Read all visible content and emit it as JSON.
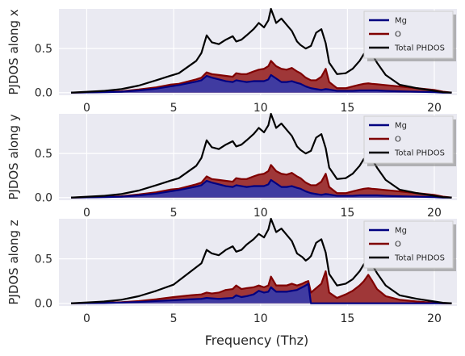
{
  "figure": {
    "xlabel": "Frequency (Thz)"
  },
  "colors": {
    "background": "#EAEAF2",
    "grid": "#FFFFFF",
    "mg": "#000080",
    "mg_fill": "#3B3BA6",
    "o": "#800000",
    "o_fill": "#9B2D2D",
    "total": "#000000"
  },
  "legend_labels": [
    "Mg",
    "O",
    "Total PHDOS"
  ],
  "chart_data": [
    {
      "type": "area",
      "ylabel": "PJDOS along x",
      "xlim": [
        -1.6,
        21.3
      ],
      "ylim": [
        -0.03,
        0.95
      ],
      "xticks": [
        0,
        5,
        10,
        15,
        20
      ],
      "yticks": [
        0.0,
        0.5
      ],
      "grid": true,
      "legend": "top-right",
      "x": [
        -0.9,
        1,
        2,
        3,
        4,
        4.8,
        5.3,
        6.3,
        6.6,
        6.9,
        7.2,
        7.6,
        8.0,
        8.4,
        8.6,
        8.9,
        9.2,
        9.6,
        9.9,
        10.2,
        10.45,
        10.6,
        10.9,
        11.2,
        11.5,
        11.8,
        12.1,
        12.3,
        12.6,
        12.9,
        13.2,
        13.5,
        13.75,
        13.95,
        14.4,
        14.9,
        15.3,
        15.7,
        15.95,
        16.2,
        16.4,
        16.7,
        17.2,
        18.0,
        19.0,
        20.0,
        20.5,
        21.0
      ],
      "series": [
        {
          "name": "Mg",
          "values": [
            0.0,
            0.005,
            0.01,
            0.025,
            0.045,
            0.07,
            0.085,
            0.125,
            0.14,
            0.19,
            0.17,
            0.15,
            0.13,
            0.12,
            0.14,
            0.13,
            0.12,
            0.13,
            0.13,
            0.13,
            0.15,
            0.2,
            0.16,
            0.12,
            0.12,
            0.13,
            0.11,
            0.1,
            0.07,
            0.05,
            0.04,
            0.03,
            0.04,
            0.035,
            0.02,
            0.02,
            0.02,
            0.025,
            0.025,
            0.025,
            0.025,
            0.025,
            0.02,
            0.015,
            0.01,
            0.005,
            0.0,
            0.0
          ]
        },
        {
          "name": "O",
          "values": [
            0.0,
            0.008,
            0.015,
            0.035,
            0.06,
            0.09,
            0.1,
            0.15,
            0.17,
            0.23,
            0.21,
            0.2,
            0.19,
            0.18,
            0.22,
            0.21,
            0.21,
            0.24,
            0.26,
            0.27,
            0.3,
            0.36,
            0.3,
            0.27,
            0.26,
            0.28,
            0.24,
            0.22,
            0.17,
            0.14,
            0.14,
            0.18,
            0.27,
            0.12,
            0.05,
            0.05,
            0.07,
            0.09,
            0.1,
            0.105,
            0.1,
            0.095,
            0.085,
            0.07,
            0.05,
            0.03,
            0.01,
            0.0
          ]
        },
        {
          "name": "Total PHDOS",
          "values": [
            0.0,
            0.02,
            0.04,
            0.08,
            0.14,
            0.19,
            0.22,
            0.36,
            0.45,
            0.65,
            0.57,
            0.55,
            0.6,
            0.64,
            0.58,
            0.6,
            0.65,
            0.72,
            0.79,
            0.74,
            0.82,
            0.95,
            0.79,
            0.84,
            0.77,
            0.7,
            0.58,
            0.54,
            0.5,
            0.53,
            0.68,
            0.72,
            0.56,
            0.34,
            0.21,
            0.22,
            0.27,
            0.36,
            0.44,
            0.48,
            0.44,
            0.34,
            0.2,
            0.09,
            0.05,
            0.02,
            0.005,
            0.0
          ]
        }
      ]
    },
    {
      "type": "area",
      "ylabel": "PJDOS along y",
      "xlim": [
        -1.6,
        21.3
      ],
      "ylim": [
        -0.03,
        0.95
      ],
      "xticks": [
        0,
        5,
        10,
        15,
        20
      ],
      "yticks": [
        0.0,
        0.5
      ],
      "grid": true,
      "legend": "top-right",
      "x": [
        -0.9,
        1,
        2,
        3,
        4,
        4.8,
        5.3,
        6.3,
        6.6,
        6.9,
        7.2,
        7.6,
        8.0,
        8.4,
        8.6,
        8.9,
        9.2,
        9.6,
        9.9,
        10.2,
        10.45,
        10.6,
        10.9,
        11.2,
        11.5,
        11.8,
        12.1,
        12.3,
        12.6,
        12.9,
        13.2,
        13.5,
        13.75,
        13.95,
        14.4,
        14.9,
        15.3,
        15.7,
        15.95,
        16.2,
        16.4,
        16.7,
        17.2,
        18.0,
        19.0,
        20.0,
        20.5,
        21.0
      ],
      "series": [
        {
          "name": "Mg",
          "values": [
            0.0,
            0.005,
            0.01,
            0.025,
            0.045,
            0.07,
            0.085,
            0.125,
            0.14,
            0.19,
            0.17,
            0.15,
            0.13,
            0.12,
            0.14,
            0.13,
            0.12,
            0.13,
            0.13,
            0.13,
            0.15,
            0.2,
            0.16,
            0.12,
            0.12,
            0.13,
            0.11,
            0.1,
            0.07,
            0.05,
            0.04,
            0.03,
            0.04,
            0.035,
            0.02,
            0.02,
            0.02,
            0.025,
            0.025,
            0.025,
            0.025,
            0.025,
            0.02,
            0.015,
            0.01,
            0.005,
            0.0,
            0.0
          ]
        },
        {
          "name": "O",
          "values": [
            0.0,
            0.008,
            0.015,
            0.035,
            0.06,
            0.09,
            0.1,
            0.15,
            0.17,
            0.24,
            0.21,
            0.2,
            0.19,
            0.18,
            0.22,
            0.21,
            0.21,
            0.24,
            0.26,
            0.27,
            0.3,
            0.37,
            0.3,
            0.27,
            0.26,
            0.28,
            0.24,
            0.22,
            0.17,
            0.14,
            0.14,
            0.18,
            0.27,
            0.12,
            0.05,
            0.05,
            0.07,
            0.09,
            0.1,
            0.105,
            0.1,
            0.095,
            0.085,
            0.07,
            0.05,
            0.03,
            0.01,
            0.0
          ]
        },
        {
          "name": "Total PHDOS",
          "values": [
            0.0,
            0.02,
            0.04,
            0.08,
            0.14,
            0.19,
            0.22,
            0.36,
            0.45,
            0.65,
            0.57,
            0.55,
            0.6,
            0.64,
            0.58,
            0.6,
            0.65,
            0.72,
            0.79,
            0.74,
            0.82,
            0.95,
            0.79,
            0.84,
            0.77,
            0.7,
            0.58,
            0.54,
            0.5,
            0.53,
            0.68,
            0.72,
            0.56,
            0.34,
            0.21,
            0.22,
            0.27,
            0.36,
            0.44,
            0.48,
            0.44,
            0.34,
            0.2,
            0.09,
            0.05,
            0.02,
            0.005,
            0.0
          ]
        }
      ]
    },
    {
      "type": "area",
      "ylabel": "PJDOS along z",
      "xlim": [
        -1.6,
        21.3
      ],
      "ylim": [
        -0.03,
        0.95
      ],
      "xticks": [
        0,
        5,
        10,
        15,
        20
      ],
      "yticks": [
        0.0,
        0.5
      ],
      "grid": true,
      "legend": "top-right",
      "x": [
        -0.9,
        1,
        2,
        3,
        4,
        5,
        6,
        6.6,
        6.9,
        7.2,
        7.6,
        8.0,
        8.4,
        8.6,
        8.9,
        9.2,
        9.6,
        9.9,
        10.2,
        10.45,
        10.6,
        10.9,
        11.2,
        11.5,
        11.8,
        12.1,
        12.4,
        12.6,
        12.75,
        12.9,
        13.2,
        13.5,
        13.75,
        13.95,
        14.4,
        14.9,
        15.3,
        15.7,
        15.95,
        16.2,
        16.4,
        16.7,
        17.2,
        18.0,
        19.0,
        20.0,
        20.5,
        21.0
      ],
      "series": [
        {
          "name": "Mg",
          "values": [
            0.0,
            0.004,
            0.008,
            0.015,
            0.025,
            0.035,
            0.045,
            0.05,
            0.06,
            0.055,
            0.05,
            0.055,
            0.06,
            0.09,
            0.07,
            0.08,
            0.1,
            0.14,
            0.12,
            0.13,
            0.18,
            0.13,
            0.13,
            0.13,
            0.14,
            0.15,
            0.18,
            0.2,
            0.22,
            0.0,
            0.0,
            0.0,
            0.0,
            0.0,
            0.0,
            0.0,
            0.0,
            0.0,
            0.0,
            0.0,
            0.0,
            0.0,
            0.0,
            0.0,
            0.0,
            0.0,
            0.0,
            0.0
          ]
        },
        {
          "name": "O",
          "values": [
            0.0,
            0.006,
            0.012,
            0.025,
            0.045,
            0.07,
            0.09,
            0.1,
            0.12,
            0.11,
            0.12,
            0.15,
            0.16,
            0.2,
            0.16,
            0.17,
            0.18,
            0.2,
            0.18,
            0.2,
            0.3,
            0.2,
            0.2,
            0.2,
            0.22,
            0.2,
            0.22,
            0.24,
            0.25,
            0.12,
            0.17,
            0.22,
            0.36,
            0.12,
            0.06,
            0.1,
            0.14,
            0.2,
            0.25,
            0.32,
            0.26,
            0.16,
            0.08,
            0.04,
            0.02,
            0.005,
            0.0,
            0.0
          ]
        },
        {
          "name": "Total PHDOS",
          "values": [
            0.0,
            0.02,
            0.04,
            0.08,
            0.14,
            0.21,
            0.36,
            0.45,
            0.6,
            0.56,
            0.54,
            0.6,
            0.64,
            0.58,
            0.6,
            0.66,
            0.72,
            0.78,
            0.74,
            0.83,
            0.95,
            0.8,
            0.84,
            0.77,
            0.7,
            0.56,
            0.52,
            0.48,
            0.5,
            0.53,
            0.68,
            0.72,
            0.57,
            0.33,
            0.2,
            0.22,
            0.27,
            0.36,
            0.44,
            0.48,
            0.44,
            0.34,
            0.2,
            0.09,
            0.05,
            0.02,
            0.005,
            0.0
          ]
        }
      ]
    }
  ]
}
